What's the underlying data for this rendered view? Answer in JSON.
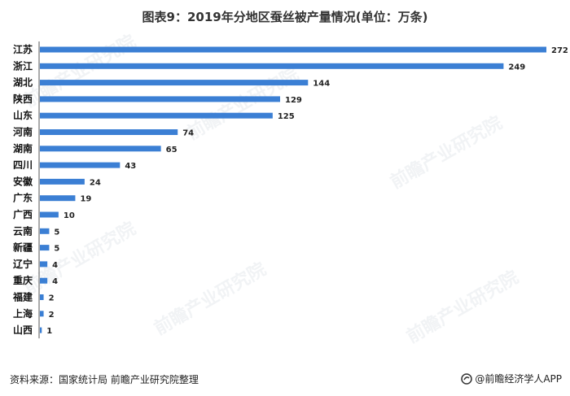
{
  "title": "图表9：2019年分地区蚕丝被产量情况(单位：万条)",
  "source": "资料来源：国家统计局 前瞻产业研究院整理",
  "brand": "@前瞻经济学人APP",
  "watermark": "前瞻产业研究院",
  "colors": {
    "bar": "#3b7fd4",
    "axis": "#555555"
  },
  "chart_data": {
    "type": "bar",
    "orientation": "horizontal",
    "categories": [
      "江苏",
      "浙江",
      "湖北",
      "陕西",
      "山东",
      "河南",
      "湖南",
      "四川",
      "安徽",
      "广东",
      "广西",
      "云南",
      "新疆",
      "辽宁",
      "重庆",
      "福建",
      "上海",
      "山西"
    ],
    "values": [
      272,
      249,
      144,
      129,
      125,
      74,
      65,
      43,
      24,
      19,
      10,
      5,
      5,
      4,
      4,
      2,
      2,
      1
    ],
    "title": "图表9：2019年分地区蚕丝被产量情况(单位：万条)",
    "xlabel": "",
    "ylabel": "",
    "xlim": [
      0,
      272
    ],
    "grid": false,
    "legend": "none",
    "data_labels": true
  }
}
